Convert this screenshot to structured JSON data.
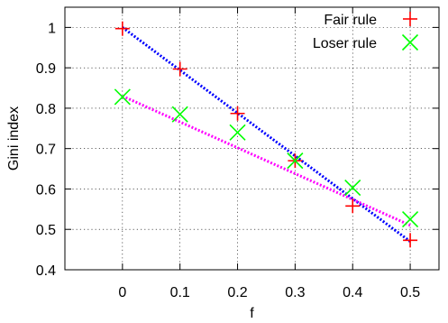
{
  "chart_data": {
    "type": "scatter",
    "xlabel": "f",
    "ylabel": "Gini index",
    "xlim": [
      -0.1,
      0.55
    ],
    "ylim": [
      0.4,
      1.05
    ],
    "x_ticks": [
      0,
      0.1,
      0.2,
      0.3,
      0.4,
      0.5
    ],
    "x_tick_labels": [
      "0",
      "0.1",
      "0.2",
      "0.3",
      "0.4",
      "0.5"
    ],
    "y_ticks": [
      0.4,
      0.5,
      0.6,
      0.7,
      0.8,
      0.9,
      1.0
    ],
    "y_tick_labels": [
      "0.4",
      "0.5",
      "0.6",
      "0.7",
      "0.8",
      "0.9",
      "1"
    ],
    "grid": true,
    "legend_position": "top-right",
    "series": [
      {
        "name": "Fair rule",
        "marker": "plus",
        "marker_color": "#ff0000",
        "x": [
          0,
          0.1,
          0.2,
          0.3,
          0.4,
          0.5
        ],
        "y": [
          0.997,
          0.897,
          0.787,
          0.67,
          0.558,
          0.473
        ],
        "fit": {
          "x": [
            0,
            0.5
          ],
          "y": [
            1.0,
            0.47
          ],
          "color": "#0000ff",
          "style": "dotted"
        }
      },
      {
        "name": "Loser rule",
        "marker": "cross",
        "marker_color": "#00ff00",
        "x": [
          0,
          0.1,
          0.2,
          0.3,
          0.4,
          0.5
        ],
        "y": [
          0.828,
          0.785,
          0.74,
          0.67,
          0.603,
          0.525
        ],
        "fit": {
          "x": [
            0,
            0.5
          ],
          "y": [
            0.83,
            0.51
          ],
          "color": "#ff00ff",
          "style": "dotted"
        }
      }
    ]
  }
}
